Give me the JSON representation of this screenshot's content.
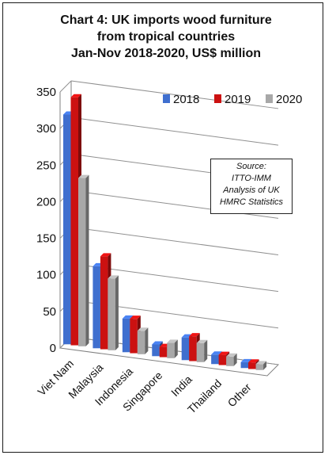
{
  "chart_data": {
    "type": "bar",
    "title_lines": [
      "Chart 4: UK imports wood furniture",
      "from tropical countries",
      "Jan-Nov 2018-2020, US$ million"
    ],
    "categories": [
      "Viet Nam",
      "Malaysia",
      "Indonesia",
      "Singapore",
      "India",
      "Thailand",
      "Other"
    ],
    "series": [
      {
        "name": "2018",
        "values": [
          314,
          112,
          46,
          16,
          31,
          13,
          8
        ],
        "color": "#3f6fcf"
      },
      {
        "name": "2019",
        "values": [
          339,
          127,
          47,
          14,
          34,
          14,
          9
        ],
        "color": "#cc1111"
      },
      {
        "name": "2020",
        "values": [
          230,
          98,
          32,
          21,
          26,
          13,
          8
        ],
        "color": "#a8a8a8"
      }
    ],
    "ylim": [
      0,
      350
    ],
    "yticks": [
      0,
      50,
      100,
      150,
      200,
      250,
      300,
      350
    ],
    "xlabel": "",
    "ylabel": "",
    "grid": true,
    "legend_position": "top-right",
    "source_note_lines": [
      "Source:",
      "ITTO-IMM",
      "Analysis of UK",
      "HMRC Statistics"
    ]
  }
}
